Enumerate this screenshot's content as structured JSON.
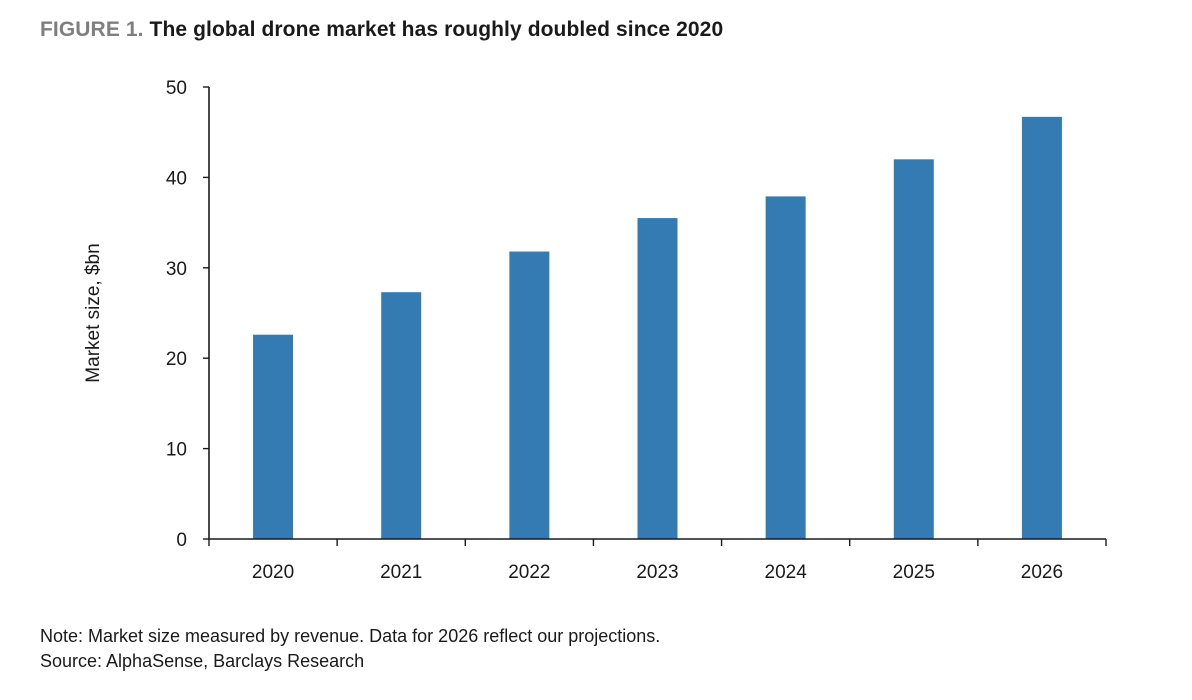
{
  "figure": {
    "label": "FIGURE 1.",
    "title": "The global drone market has roughly doubled since 2020"
  },
  "notes": {
    "note": "Note: Market size measured by revenue. Data for 2026 reflect our projections.",
    "source": "Source: AlphaSense, Barclays Research"
  },
  "chart_data": {
    "type": "bar",
    "categories": [
      "2020",
      "2021",
      "2022",
      "2023",
      "2024",
      "2025",
      "2026"
    ],
    "values": [
      22.6,
      27.3,
      31.8,
      35.5,
      37.9,
      42.0,
      46.7
    ],
    "ylabel": "Market size, $bn",
    "xlabel": "",
    "ylim": [
      0,
      50
    ],
    "yticks": [
      0,
      10,
      20,
      30,
      40,
      50
    ],
    "grid": false,
    "legend": "none",
    "colors": {
      "bar": "#357bb3",
      "axis": "#1a1a1a",
      "text": "#1a1a1a"
    }
  }
}
